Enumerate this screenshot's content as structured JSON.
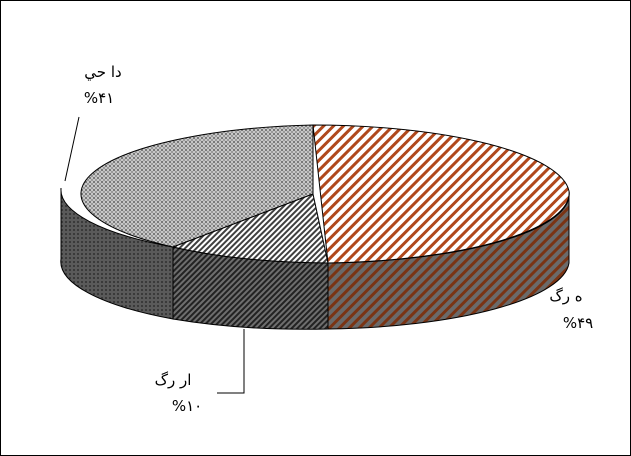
{
  "chart_data": {
    "type": "pie",
    "title": "",
    "style": "3d-exploded-tilted",
    "slices": [
      {
        "label": "ه     رگ",
        "percent_label": "%۴۹",
        "value": 49,
        "pattern": "diagonal-hatch",
        "color": "#a0401a"
      },
      {
        "label": "ار    رگ",
        "percent_label": "%۱۰",
        "value": 10,
        "pattern": "fine-diagonal-hatch",
        "color": "#404040"
      },
      {
        "label": "دا حي",
        "percent_label": "%۴۱",
        "value": 41,
        "pattern": "dotted-grid",
        "color": "#8a8a8a"
      }
    ]
  }
}
